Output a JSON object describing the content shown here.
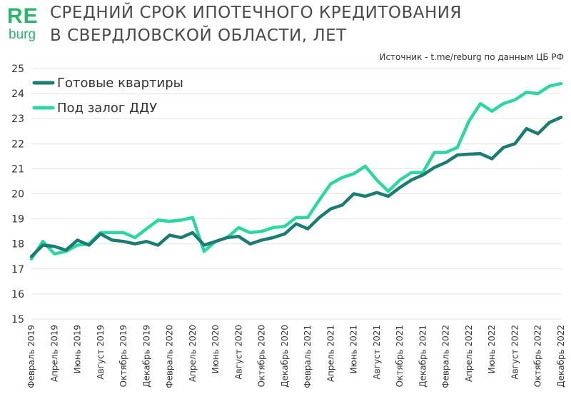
{
  "logo": {
    "re": "RE",
    "burg": "burg"
  },
  "header": {
    "title_line1": "СРЕДНИЙ СРОК ИПОТЕЧНОГО КРЕДИТОВАНИЯ",
    "title_line2": "В СВЕРДЛОВСКОЙ ОБЛАСТИ, ЛЕТ",
    "source": "Источник - t.me/reburg по данным ЦБ РФ"
  },
  "colors": {
    "series_ready": "#1c7b72",
    "series_ddu": "#2ed6a0",
    "grid": "#e2e2e2",
    "logo": "#2db36b"
  },
  "chart_data": {
    "type": "line",
    "title": "СРЕДНИЙ СРОК ИПОТЕЧНОГО КРЕДИТОВАНИЯ В СВЕРДЛОВСКОЙ ОБЛАСТИ, ЛЕТ",
    "xlabel": "",
    "ylabel": "",
    "ylim": [
      15,
      25
    ],
    "yticks": [
      15,
      16,
      17,
      18,
      19,
      20,
      21,
      22,
      23,
      24,
      25
    ],
    "grid": true,
    "legend_position": "top-left",
    "x": [
      "2019-02",
      "2019-03",
      "2019-04",
      "2019-05",
      "2019-06",
      "2019-07",
      "2019-08",
      "2019-09",
      "2019-10",
      "2019-11",
      "2019-12",
      "2020-01",
      "2020-02",
      "2020-03",
      "2020-04",
      "2020-05",
      "2020-06",
      "2020-07",
      "2020-08",
      "2020-09",
      "2020-10",
      "2020-11",
      "2020-12",
      "2021-01",
      "2021-02",
      "2021-03",
      "2021-04",
      "2021-05",
      "2021-06",
      "2021-07",
      "2021-08",
      "2021-09",
      "2021-10",
      "2021-11",
      "2021-12",
      "2022-01",
      "2022-02",
      "2022-03",
      "2022-04",
      "2022-05",
      "2022-06",
      "2022-07",
      "2022-08",
      "2022-09",
      "2022-10",
      "2022-11",
      "2022-12"
    ],
    "x_tick_labels": [
      "Февраль 2019",
      "Апрель 2019",
      "Июнь 2019",
      "Август 2019",
      "Октябрь 2019",
      "Декабрь 2019",
      "Февраль 2020",
      "Апрель 2020",
      "Июнь 2020",
      "Август 2020",
      "Октябрь 2020",
      "Декабрь 2020",
      "Февраль 2021",
      "Апрель 2021",
      "Июнь 2021",
      "Август 2021",
      "Октябрь 2021",
      "Декабрь 2021",
      "Февраль 2022",
      "Апрель 2022",
      "Июнь 2022",
      "Август 2022",
      "Октябрь 2022",
      "Декабрь 2022"
    ],
    "series": [
      {
        "name": "Готовые квартиры",
        "values": [
          17.5,
          17.95,
          17.9,
          17.75,
          18.15,
          17.95,
          18.4,
          18.15,
          18.1,
          18.0,
          18.1,
          17.95,
          18.35,
          18.25,
          18.45,
          17.95,
          18.1,
          18.25,
          18.3,
          18.0,
          18.15,
          18.25,
          18.4,
          18.8,
          18.6,
          19.05,
          19.4,
          19.55,
          20.0,
          19.9,
          20.05,
          19.9,
          20.25,
          20.55,
          20.75,
          21.05,
          21.25,
          21.55,
          21.58,
          21.6,
          21.4,
          21.85,
          22.0,
          22.6,
          22.4,
          22.85,
          23.05
        ]
      },
      {
        "name": "Под залог ДДУ",
        "values": [
          17.4,
          18.1,
          17.6,
          17.7,
          17.95,
          18.0,
          18.45,
          18.45,
          18.45,
          18.25,
          18.6,
          18.95,
          18.9,
          18.95,
          19.05,
          17.7,
          18.1,
          18.25,
          18.65,
          18.45,
          18.5,
          18.65,
          18.7,
          19.05,
          19.05,
          19.75,
          20.4,
          20.65,
          20.8,
          21.1,
          20.55,
          20.1,
          20.55,
          20.85,
          20.85,
          21.65,
          21.65,
          21.85,
          22.9,
          23.6,
          23.3,
          23.6,
          23.75,
          24.05,
          24.0,
          24.3,
          24.4
        ]
      }
    ]
  }
}
